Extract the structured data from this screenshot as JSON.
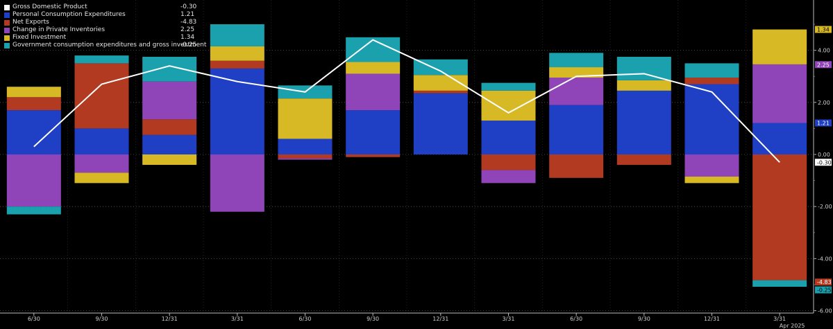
{
  "chart_data": {
    "type": "bar",
    "stacked": true,
    "categories": [
      "6/30",
      "9/30",
      "12/31",
      "3/31",
      "6/30",
      "9/30",
      "12/31",
      "3/31",
      "6/30",
      "9/30",
      "12/31",
      "3/31"
    ],
    "x_sublabel": "Apr 2025",
    "ylim": [
      -6,
      5.2
    ],
    "yticks": [
      -6,
      -4,
      -2,
      0,
      2,
      4
    ],
    "ytick_labels": [
      "-6.00",
      "-4.00",
      "-2.00",
      "0.00",
      "2.00",
      "4.00"
    ],
    "grid": true,
    "legend_position": "top-left",
    "series": [
      {
        "name": "Personal Consumption Expenditures",
        "color": "#1f3fc4",
        "type": "bar",
        "values": [
          1.7,
          1.0,
          0.75,
          3.3,
          0.6,
          1.7,
          2.35,
          1.3,
          1.9,
          2.45,
          2.7,
          1.21
        ]
      },
      {
        "name": "Net Exports",
        "color": "#b23a20",
        "type": "bar",
        "values": [
          0.5,
          2.5,
          0.6,
          0.3,
          -0.15,
          -0.1,
          0.1,
          -0.6,
          -0.9,
          -0.4,
          0.25,
          -4.83
        ]
      },
      {
        "name": "Change in Private Inventories",
        "color": "#8f45b8",
        "type": "bar",
        "values": [
          -2.0,
          -0.7,
          1.45,
          -2.2,
          -0.05,
          1.4,
          0.0,
          -0.5,
          1.05,
          0.0,
          -0.85,
          2.25
        ]
      },
      {
        "name": "Fixed Investment",
        "color": "#d7b926",
        "type": "bar",
        "values": [
          0.4,
          -0.4,
          -0.4,
          0.55,
          1.55,
          0.45,
          0.6,
          1.15,
          0.4,
          0.4,
          -0.25,
          1.34
        ]
      },
      {
        "name": "Government consumption expenditures and gross investment",
        "color": "#1ba0ad",
        "type": "bar",
        "values": [
          -0.3,
          0.3,
          0.95,
          0.85,
          0.5,
          0.95,
          0.6,
          0.3,
          0.55,
          0.9,
          0.55,
          -0.25
        ]
      },
      {
        "name": "Gross Domestic Product",
        "color": "#ffffff",
        "type": "line",
        "values": [
          0.3,
          2.7,
          3.4,
          2.8,
          2.4,
          4.4,
          3.2,
          1.6,
          3.0,
          3.1,
          2.4,
          -0.3
        ]
      }
    ],
    "legend": [
      {
        "name": "Gross Domestic Product",
        "value": "-0.30",
        "color": "#ffffff"
      },
      {
        "name": "Personal Consumption Expenditures",
        "value": "1.21",
        "color": "#1f3fc4"
      },
      {
        "name": "Net Exports",
        "value": "-4.83",
        "color": "#b23a20"
      },
      {
        "name": "Change in Private Inventories",
        "value": "2.25",
        "color": "#8f45b8"
      },
      {
        "name": "Fixed Investment",
        "value": "1.34",
        "color": "#d7b926"
      },
      {
        "name": "Government consumption expenditures and gross investment",
        "value": "-0.25",
        "color": "#1ba0ad"
      }
    ],
    "right_tags": [
      {
        "label": "1.34",
        "value": 4.8,
        "bg": "#d7b926",
        "fg": "#000000"
      },
      {
        "label": "2.25",
        "value": 3.45,
        "bg": "#8f45b8",
        "fg": "#ffffff"
      },
      {
        "label": "1.21",
        "value": 1.21,
        "bg": "#1f3fc4",
        "fg": "#ffffff"
      },
      {
        "label": "-0.30",
        "value": -0.3,
        "bg": "#ffffff",
        "fg": "#000000"
      },
      {
        "label": "-4.83",
        "value": -4.9,
        "bg": "#b23a20",
        "fg": "#ffffff"
      },
      {
        "label": "-0.25",
        "value": -5.2,
        "bg": "#1ba0ad",
        "fg": "#000000"
      }
    ]
  }
}
